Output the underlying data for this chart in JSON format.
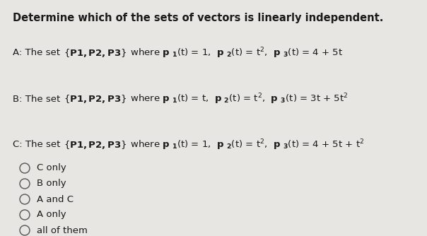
{
  "title": "Determine which of the sets of vectors is linearly independent.",
  "bg_color": "#e8e6e3",
  "text_color": "#1a1a1a",
  "title_fontsize": 10.5,
  "body_fontsize": 9.5,
  "options": [
    "C only",
    "B only",
    "A and C",
    "A only",
    "all of them"
  ],
  "figsize": [
    6.04,
    3.34
  ],
  "dpi": 100
}
